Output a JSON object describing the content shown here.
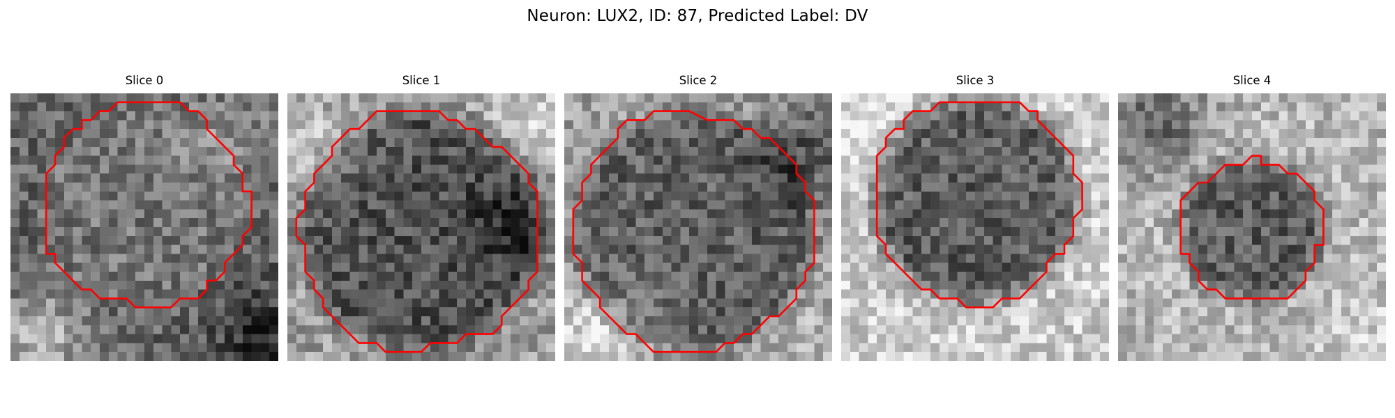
{
  "figure": {
    "title": "Neuron: LUX2, ID: 87, Predicted Label: DV"
  },
  "colors": {
    "contour": "#ff0000",
    "background": "#ffffff",
    "colormap": "gray"
  },
  "panels": [
    {
      "title": "Slice 0"
    },
    {
      "title": "Slice 1"
    },
    {
      "title": "Slice 2"
    },
    {
      "title": "Slice 3"
    },
    {
      "title": "Slice 4"
    }
  ]
}
